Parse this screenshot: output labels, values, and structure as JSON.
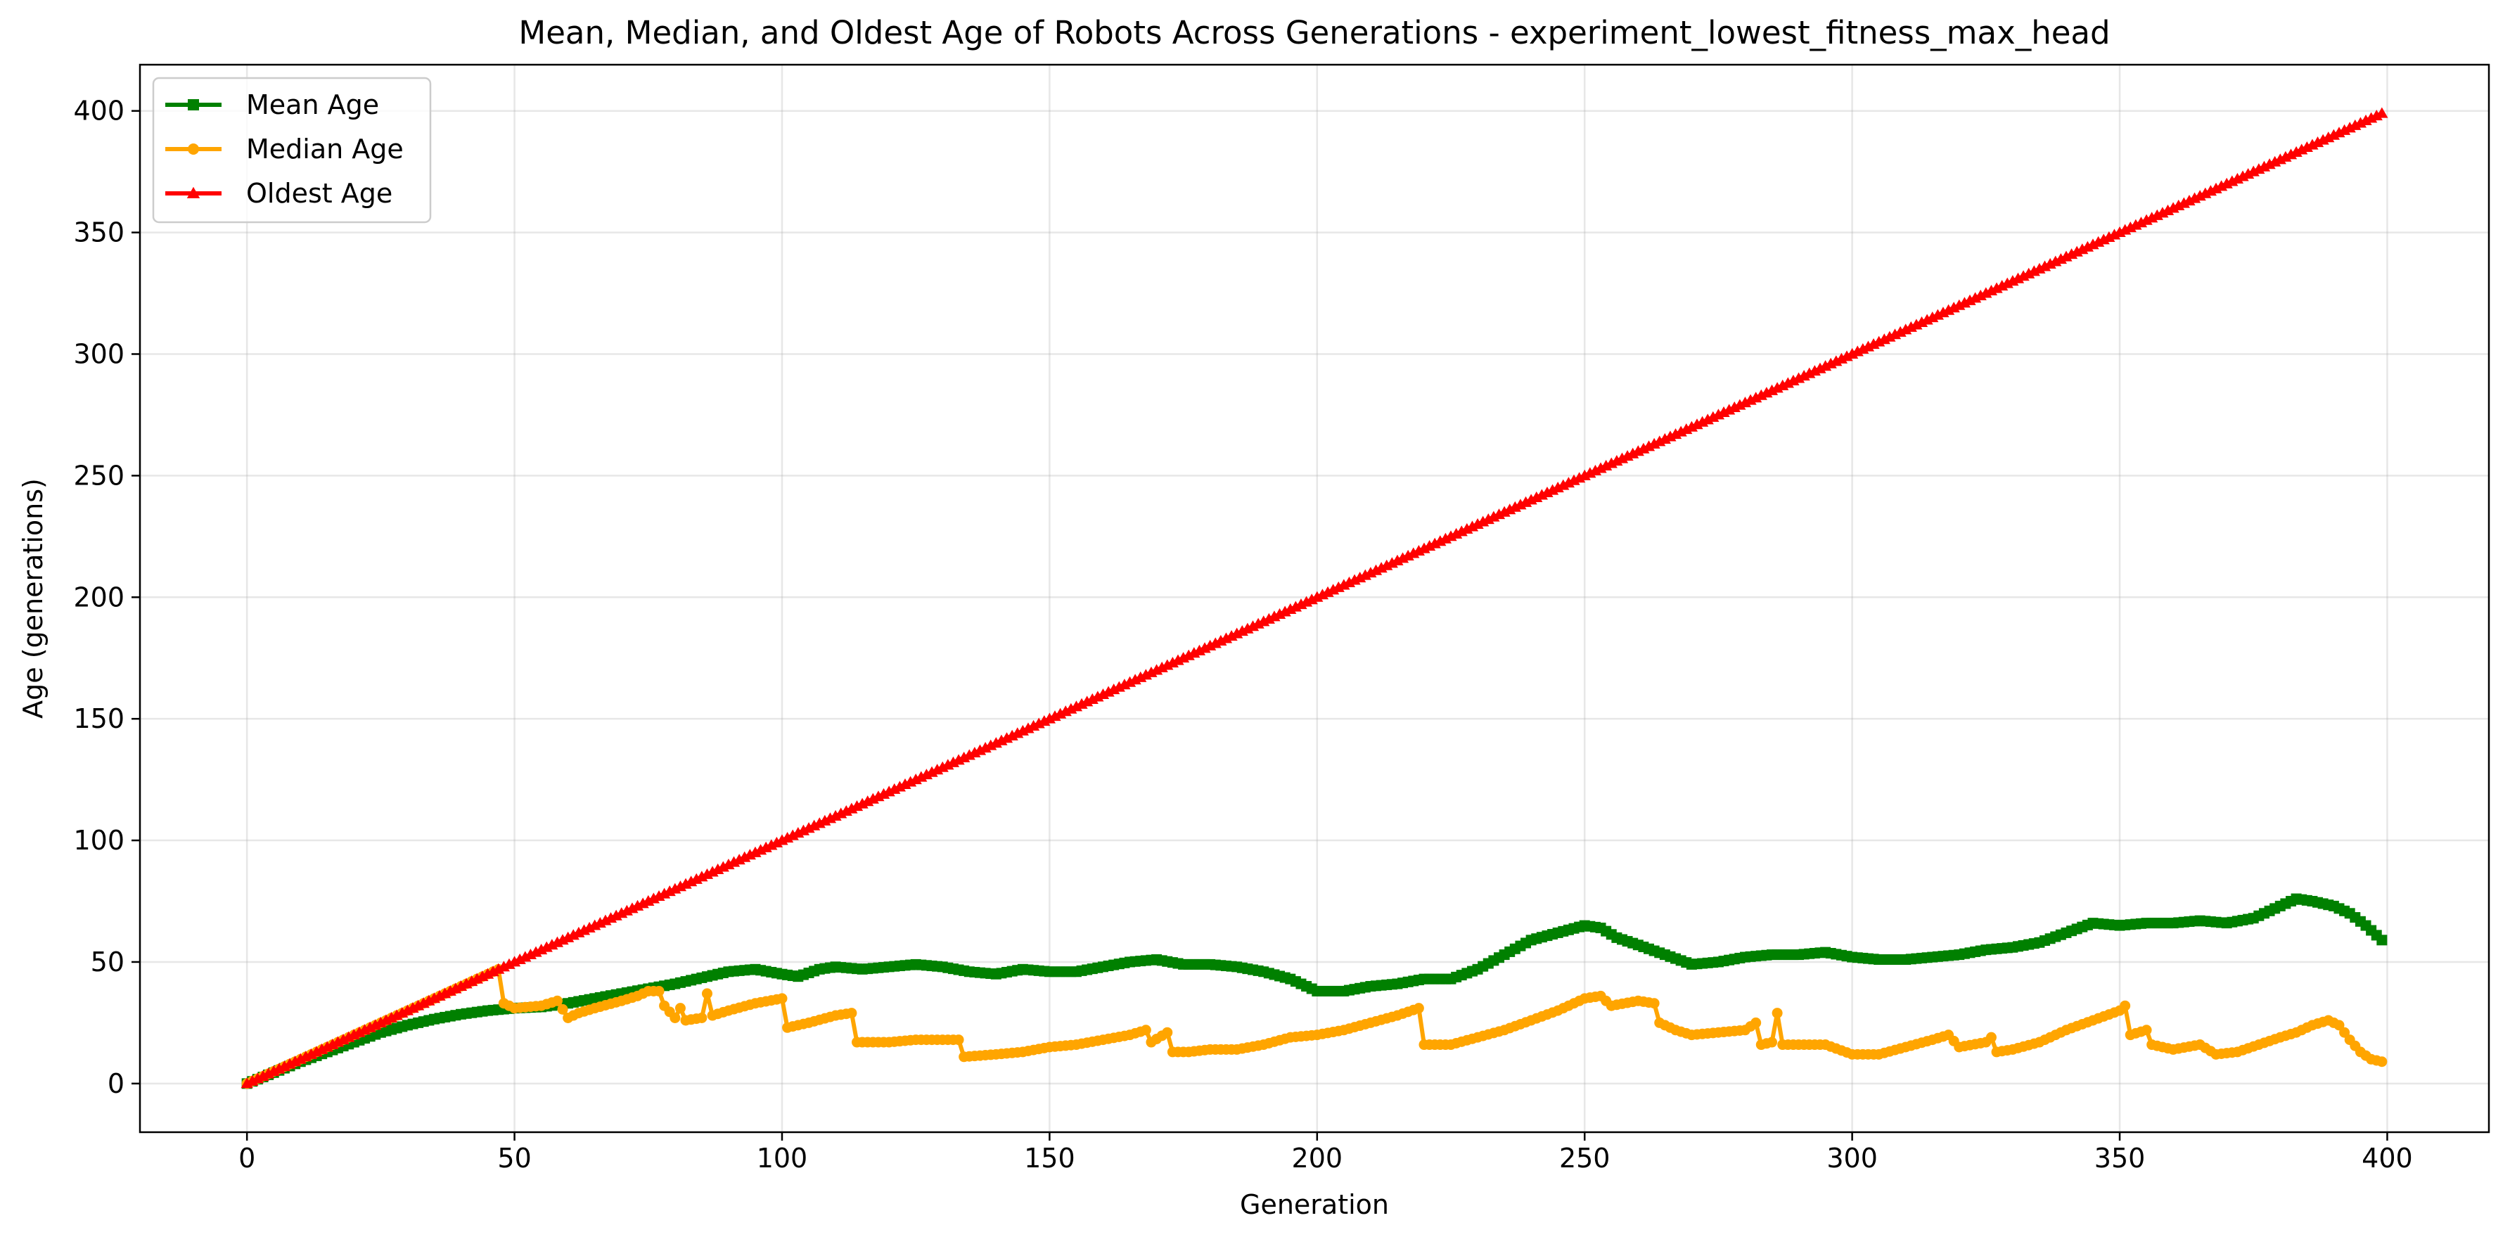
{
  "chart_data": {
    "type": "line",
    "title": "Mean, Median, and Oldest Age of Robots Across Generations - experiment_lowest_fitness_max_head",
    "xlabel": "Generation",
    "ylabel": "Age (generations)",
    "xlim": [
      -20,
      419
    ],
    "ylim": [
      -20,
      419
    ],
    "xticks": [
      0,
      50,
      100,
      150,
      200,
      250,
      300,
      350,
      400
    ],
    "yticks": [
      0,
      50,
      100,
      150,
      200,
      250,
      300,
      350,
      400
    ],
    "xtick_labels": [
      "0",
      "50",
      "100",
      "150",
      "200",
      "250",
      "300",
      "350",
      "400"
    ],
    "ytick_labels": [
      "0",
      "50",
      "100",
      "150",
      "200",
      "250",
      "300",
      "350",
      "400"
    ],
    "grid": true,
    "legend_position": "upper-left",
    "x": {
      "start": 0,
      "end": 399,
      "step": 1
    },
    "series": [
      {
        "name": "Mean Age",
        "color": "#008000",
        "marker": "square",
        "keypoints": [
          [
            0,
            0
          ],
          [
            5,
            4.5
          ],
          [
            10,
            9
          ],
          [
            15,
            13
          ],
          [
            20,
            17
          ],
          [
            25,
            21
          ],
          [
            30,
            24
          ],
          [
            35,
            26.5
          ],
          [
            40,
            28.5
          ],
          [
            45,
            30
          ],
          [
            50,
            31
          ],
          [
            55,
            31.5
          ],
          [
            60,
            33
          ],
          [
            65,
            35
          ],
          [
            70,
            37
          ],
          [
            75,
            39
          ],
          [
            80,
            41
          ],
          [
            85,
            43.5
          ],
          [
            90,
            46
          ],
          [
            95,
            47
          ],
          [
            100,
            45
          ],
          [
            103,
            44
          ],
          [
            107,
            47
          ],
          [
            110,
            48
          ],
          [
            115,
            47
          ],
          [
            120,
            48
          ],
          [
            125,
            49
          ],
          [
            130,
            48
          ],
          [
            135,
            46
          ],
          [
            140,
            45
          ],
          [
            145,
            47
          ],
          [
            150,
            46
          ],
          [
            155,
            46
          ],
          [
            160,
            48
          ],
          [
            165,
            50
          ],
          [
            170,
            51
          ],
          [
            175,
            49
          ],
          [
            180,
            49
          ],
          [
            185,
            48
          ],
          [
            190,
            46
          ],
          [
            195,
            43
          ],
          [
            198,
            40
          ],
          [
            200,
            38
          ],
          [
            205,
            38
          ],
          [
            210,
            40
          ],
          [
            215,
            41
          ],
          [
            220,
            43
          ],
          [
            225,
            43
          ],
          [
            230,
            47
          ],
          [
            235,
            53
          ],
          [
            240,
            59
          ],
          [
            245,
            62
          ],
          [
            250,
            65
          ],
          [
            253,
            64
          ],
          [
            256,
            60
          ],
          [
            260,
            57
          ],
          [
            265,
            53
          ],
          [
            270,
            49
          ],
          [
            275,
            50
          ],
          [
            280,
            52
          ],
          [
            285,
            53
          ],
          [
            290,
            53
          ],
          [
            295,
            54
          ],
          [
            300,
            52
          ],
          [
            305,
            51
          ],
          [
            310,
            51
          ],
          [
            315,
            52
          ],
          [
            320,
            53
          ],
          [
            325,
            55
          ],
          [
            330,
            56
          ],
          [
            335,
            58
          ],
          [
            340,
            62
          ],
          [
            345,
            66
          ],
          [
            350,
            65
          ],
          [
            355,
            66
          ],
          [
            360,
            66
          ],
          [
            365,
            67
          ],
          [
            370,
            66
          ],
          [
            375,
            68
          ],
          [
            380,
            73
          ],
          [
            383,
            76
          ],
          [
            386,
            75
          ],
          [
            390,
            73
          ],
          [
            393,
            70
          ],
          [
            396,
            65
          ],
          [
            399,
            59
          ]
        ]
      },
      {
        "name": "Median Age",
        "color": "#FFA500",
        "marker": "circle",
        "keypoints": [
          [
            0,
            0
          ],
          [
            47,
            47
          ],
          [
            48,
            33
          ],
          [
            50,
            31
          ],
          [
            55,
            32
          ],
          [
            58,
            34
          ],
          [
            60,
            27
          ],
          [
            62,
            29
          ],
          [
            65,
            31
          ],
          [
            70,
            34
          ],
          [
            73,
            36
          ],
          [
            75,
            38
          ],
          [
            77,
            38
          ],
          [
            78,
            32
          ],
          [
            80,
            27
          ],
          [
            81,
            31
          ],
          [
            82,
            26
          ],
          [
            85,
            27
          ],
          [
            86,
            37
          ],
          [
            87,
            28
          ],
          [
            90,
            30
          ],
          [
            95,
            33
          ],
          [
            100,
            35
          ],
          [
            101,
            23
          ],
          [
            105,
            25
          ],
          [
            110,
            28
          ],
          [
            113,
            29
          ],
          [
            114,
            17
          ],
          [
            120,
            17
          ],
          [
            125,
            18
          ],
          [
            130,
            18
          ],
          [
            133,
            18
          ],
          [
            134,
            11
          ],
          [
            140,
            12
          ],
          [
            145,
            13
          ],
          [
            150,
            15
          ],
          [
            155,
            16
          ],
          [
            160,
            18
          ],
          [
            165,
            20
          ],
          [
            168,
            22
          ],
          [
            169,
            17
          ],
          [
            172,
            21
          ],
          [
            173,
            13
          ],
          [
            176,
            13
          ],
          [
            180,
            14
          ],
          [
            185,
            14
          ],
          [
            190,
            16
          ],
          [
            195,
            19
          ],
          [
            200,
            20
          ],
          [
            205,
            22
          ],
          [
            210,
            25
          ],
          [
            215,
            28
          ],
          [
            219,
            31
          ],
          [
            220,
            16
          ],
          [
            225,
            16
          ],
          [
            230,
            19
          ],
          [
            235,
            22
          ],
          [
            240,
            26
          ],
          [
            245,
            30
          ],
          [
            250,
            35
          ],
          [
            253,
            36
          ],
          [
            255,
            32
          ],
          [
            260,
            34
          ],
          [
            263,
            33
          ],
          [
            264,
            25
          ],
          [
            267,
            22
          ],
          [
            270,
            20
          ],
          [
            275,
            21
          ],
          [
            280,
            22
          ],
          [
            282,
            25
          ],
          [
            283,
            16
          ],
          [
            285,
            17
          ],
          [
            286,
            29
          ],
          [
            287,
            16
          ],
          [
            290,
            16
          ],
          [
            295,
            16
          ],
          [
            300,
            12
          ],
          [
            305,
            12
          ],
          [
            310,
            15
          ],
          [
            315,
            18
          ],
          [
            318,
            20
          ],
          [
            320,
            15
          ],
          [
            325,
            17
          ],
          [
            326,
            19
          ],
          [
            327,
            13
          ],
          [
            330,
            14
          ],
          [
            335,
            17
          ],
          [
            340,
            22
          ],
          [
            345,
            26
          ],
          [
            350,
            30
          ],
          [
            351,
            32
          ],
          [
            352,
            20
          ],
          [
            355,
            22
          ],
          [
            356,
            16
          ],
          [
            360,
            14
          ],
          [
            365,
            16
          ],
          [
            368,
            12
          ],
          [
            372,
            13
          ],
          [
            376,
            16
          ],
          [
            380,
            19
          ],
          [
            383,
            21
          ],
          [
            386,
            24
          ],
          [
            389,
            26
          ],
          [
            391,
            24
          ],
          [
            393,
            18
          ],
          [
            395,
            13
          ],
          [
            397,
            10
          ],
          [
            399,
            9
          ]
        ]
      },
      {
        "name": "Oldest Age",
        "color": "#FF0000",
        "marker": "triangle",
        "keypoints": [
          [
            0,
            0
          ],
          [
            399,
            399
          ]
        ]
      }
    ]
  }
}
